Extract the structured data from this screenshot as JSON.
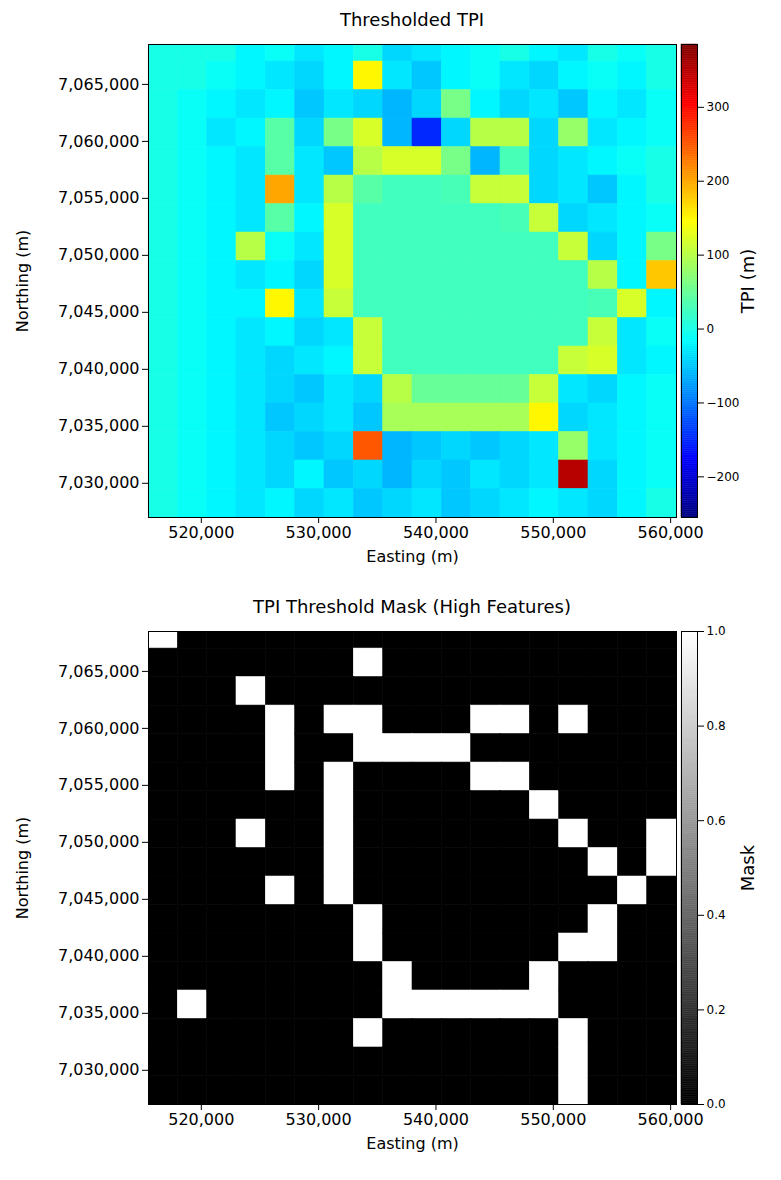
{
  "chart_data": [
    {
      "type": "heatmap",
      "title": "Thresholded TPI",
      "x_label": "Easting (m)",
      "y_label": "Northing (m)",
      "xlim": [
        515500,
        560500
      ],
      "ylim": [
        7027000,
        7068500
      ],
      "xticks": [
        {
          "value": 520000,
          "label": "520,000"
        },
        {
          "value": 530000,
          "label": "530,000"
        },
        {
          "value": 540000,
          "label": "540,000"
        },
        {
          "value": 550000,
          "label": "550,000"
        },
        {
          "value": 560000,
          "label": "560,000"
        }
      ],
      "yticks": [
        {
          "value": 7030000,
          "label": "7,030,000"
        },
        {
          "value": 7035000,
          "label": "7,035,000"
        },
        {
          "value": 7040000,
          "label": "7,040,000"
        },
        {
          "value": 7045000,
          "label": "7,045,000"
        },
        {
          "value": 7050000,
          "label": "7,050,000"
        },
        {
          "value": 7055000,
          "label": "7,055,000"
        },
        {
          "value": 7060000,
          "label": "7,060,000"
        },
        {
          "value": 7065000,
          "label": "7,065,000"
        }
      ],
      "x_edges": [
        515500,
        518000,
        520500,
        523000,
        525500,
        528000,
        530500,
        533000,
        535500,
        538000,
        540500,
        543000,
        545500,
        548000,
        550500,
        553000,
        555500,
        558000,
        560500
      ],
      "y_edges": [
        7068500,
        7067000,
        7064500,
        7062000,
        7059500,
        7057000,
        7054500,
        7052000,
        7049500,
        7047000,
        7044500,
        7042000,
        7039500,
        7037000,
        7034500,
        7032000,
        7029500,
        7027000
      ],
      "cells": [
        [
          0,
          0,
          0,
          -20,
          -10,
          -30,
          -20,
          0,
          -40,
          -30,
          -20,
          -10,
          0,
          -20,
          -30,
          0,
          -10,
          0
        ],
        [
          0,
          0,
          -10,
          -20,
          -30,
          -40,
          -20,
          150,
          -30,
          -50,
          -20,
          -10,
          -30,
          -40,
          -20,
          -10,
          -20,
          0
        ],
        [
          0,
          -10,
          -20,
          -30,
          -20,
          -50,
          -30,
          -40,
          -60,
          -40,
          60,
          -20,
          -40,
          -30,
          -50,
          -20,
          -30,
          -10
        ],
        [
          0,
          -10,
          -30,
          -20,
          40,
          -40,
          60,
          120,
          -60,
          -150,
          -40,
          100,
          100,
          -40,
          80,
          -30,
          -20,
          -10
        ],
        [
          0,
          -10,
          -20,
          -30,
          40,
          -30,
          -50,
          100,
          120,
          120,
          60,
          -60,
          30,
          -40,
          -30,
          -20,
          -10,
          0
        ],
        [
          0,
          -10,
          -20,
          -30,
          200,
          -30,
          100,
          40,
          25,
          25,
          30,
          110,
          110,
          -40,
          -30,
          -50,
          -20,
          0
        ],
        [
          0,
          -10,
          -20,
          -30,
          40,
          -20,
          120,
          25,
          25,
          25,
          25,
          25,
          30,
          110,
          -40,
          -30,
          -20,
          -10
        ],
        [
          0,
          -10,
          -20,
          100,
          -10,
          -30,
          120,
          25,
          25,
          25,
          25,
          25,
          25,
          25,
          110,
          -40,
          -20,
          60
        ],
        [
          0,
          -10,
          -20,
          -30,
          -20,
          -40,
          120,
          25,
          25,
          25,
          25,
          25,
          25,
          25,
          25,
          100,
          -20,
          180
        ],
        [
          0,
          -10,
          -20,
          -20,
          150,
          -30,
          110,
          25,
          25,
          25,
          25,
          25,
          25,
          25,
          25,
          30,
          120,
          -20
        ],
        [
          0,
          -10,
          -20,
          -30,
          -20,
          -40,
          -30,
          110,
          25,
          25,
          25,
          25,
          25,
          25,
          25,
          110,
          -30,
          -10
        ],
        [
          0,
          -10,
          -20,
          -30,
          -40,
          -30,
          -20,
          110,
          25,
          25,
          25,
          25,
          25,
          25,
          110,
          120,
          -30,
          -20
        ],
        [
          0,
          -10,
          -20,
          -30,
          -40,
          -50,
          -30,
          -40,
          100,
          50,
          50,
          50,
          50,
          110,
          -30,
          -40,
          -20,
          -10
        ],
        [
          0,
          -10,
          -20,
          -30,
          -50,
          -40,
          -30,
          -50,
          90,
          90,
          90,
          90,
          90,
          150,
          -40,
          -30,
          -20,
          -10
        ],
        [
          0,
          -10,
          -20,
          -30,
          -40,
          -50,
          -40,
          250,
          -60,
          -50,
          -40,
          -50,
          -40,
          -30,
          80,
          -30,
          -20,
          -10
        ],
        [
          0,
          -10,
          -20,
          -30,
          -40,
          -20,
          -50,
          -40,
          -60,
          -40,
          -50,
          -30,
          -40,
          -30,
          350,
          -40,
          -20,
          -10
        ],
        [
          0,
          -10,
          -20,
          -30,
          -20,
          -40,
          -30,
          -50,
          -40,
          -30,
          -50,
          -40,
          -30,
          -20,
          -30,
          -40,
          -20,
          0
        ]
      ],
      "color": "jet",
      "colorbar_label": "TPI (m)",
      "colorbar_range": [
        -255,
        385
      ],
      "colorbar_ticks": [
        {
          "value": -200,
          "label": "−200"
        },
        {
          "value": -100,
          "label": "−100"
        },
        0,
        100,
        200,
        300
      ]
    },
    {
      "type": "heatmap",
      "title": "TPI Threshold Mask (High Features)",
      "x_label": "Easting (m)",
      "y_label": "Northing (m)",
      "xlim": [
        515500,
        560500
      ],
      "ylim": [
        7027000,
        7068500
      ],
      "xticks": [
        {
          "value": 520000,
          "label": "520,000"
        },
        {
          "value": 530000,
          "label": "530,000"
        },
        {
          "value": 540000,
          "label": "540,000"
        },
        {
          "value": 550000,
          "label": "550,000"
        },
        {
          "value": 560000,
          "label": "560,000"
        }
      ],
      "yticks": [
        {
          "value": 7030000,
          "label": "7,030,000"
        },
        {
          "value": 7035000,
          "label": "7,035,000"
        },
        {
          "value": 7040000,
          "label": "7,040,000"
        },
        {
          "value": 7045000,
          "label": "7,045,000"
        },
        {
          "value": 7050000,
          "label": "7,050,000"
        },
        {
          "value": 7055000,
          "label": "7,055,000"
        },
        {
          "value": 7060000,
          "label": "7,060,000"
        },
        {
          "value": 7065000,
          "label": "7,065,000"
        }
      ],
      "x_edges": [
        515500,
        518000,
        520500,
        523000,
        525500,
        528000,
        530500,
        533000,
        535500,
        538000,
        540500,
        543000,
        545500,
        548000,
        550500,
        553000,
        555500,
        558000,
        560500
      ],
      "y_edges": [
        7068500,
        7067000,
        7064500,
        7062000,
        7059500,
        7057000,
        7054500,
        7052000,
        7049500,
        7047000,
        7044500,
        7042000,
        7039500,
        7037000,
        7034500,
        7032000,
        7029500,
        7027000
      ],
      "cells": [
        [
          1,
          0,
          0,
          0,
          0,
          0,
          0,
          0,
          0,
          0,
          0,
          0,
          0,
          0,
          0,
          0,
          0,
          0
        ],
        [
          0,
          0,
          0,
          0,
          0,
          0,
          0,
          1,
          0,
          0,
          0,
          0,
          0,
          0,
          0,
          0,
          0,
          0
        ],
        [
          0,
          0,
          0,
          1,
          0,
          0,
          0,
          0,
          0,
          0,
          0,
          0,
          0,
          0,
          0,
          0,
          0,
          0
        ],
        [
          0,
          0,
          0,
          0,
          1,
          0,
          1,
          1,
          0,
          0,
          0,
          1,
          1,
          0,
          1,
          0,
          0,
          0
        ],
        [
          0,
          0,
          0,
          0,
          1,
          0,
          0,
          1,
          1,
          1,
          1,
          0,
          0,
          0,
          0,
          0,
          0,
          0
        ],
        [
          0,
          0,
          0,
          0,
          1,
          0,
          1,
          0,
          0,
          0,
          0,
          1,
          1,
          0,
          0,
          0,
          0,
          0
        ],
        [
          0,
          0,
          0,
          0,
          0,
          0,
          1,
          0,
          0,
          0,
          0,
          0,
          0,
          1,
          0,
          0,
          0,
          0
        ],
        [
          0,
          0,
          0,
          1,
          0,
          0,
          1,
          0,
          0,
          0,
          0,
          0,
          0,
          0,
          1,
          0,
          0,
          1
        ],
        [
          0,
          0,
          0,
          0,
          0,
          0,
          1,
          0,
          0,
          0,
          0,
          0,
          0,
          0,
          0,
          1,
          0,
          1
        ],
        [
          0,
          0,
          0,
          0,
          1,
          0,
          1,
          0,
          0,
          0,
          0,
          0,
          0,
          0,
          0,
          0,
          1,
          0
        ],
        [
          0,
          0,
          0,
          0,
          0,
          0,
          0,
          1,
          0,
          0,
          0,
          0,
          0,
          0,
          0,
          1,
          0,
          0
        ],
        [
          0,
          0,
          0,
          0,
          0,
          0,
          0,
          1,
          0,
          0,
          0,
          0,
          0,
          0,
          1,
          1,
          0,
          0
        ],
        [
          0,
          0,
          0,
          0,
          0,
          0,
          0,
          0,
          1,
          0,
          0,
          0,
          0,
          1,
          0,
          0,
          0,
          0
        ],
        [
          0,
          1,
          0,
          0,
          0,
          0,
          0,
          0,
          1,
          1,
          1,
          1,
          1,
          1,
          0,
          0,
          0,
          0
        ],
        [
          0,
          0,
          0,
          0,
          0,
          0,
          0,
          1,
          0,
          0,
          0,
          0,
          0,
          0,
          1,
          0,
          0,
          0
        ],
        [
          0,
          0,
          0,
          0,
          0,
          0,
          0,
          0,
          0,
          0,
          0,
          0,
          0,
          0,
          1,
          0,
          0,
          0
        ],
        [
          0,
          0,
          0,
          0,
          0,
          0,
          0,
          0,
          0,
          0,
          0,
          0,
          0,
          0,
          1,
          0,
          0,
          0
        ]
      ],
      "color": "gray",
      "colorbar_label": "Mask",
      "colorbar_range": [
        0,
        1
      ],
      "colorbar_ticks": [
        {
          "value": 0,
          "label": "0.0"
        },
        0.2,
        0.4,
        0.6,
        0.8,
        {
          "value": 1,
          "label": "1.0"
        }
      ]
    }
  ]
}
